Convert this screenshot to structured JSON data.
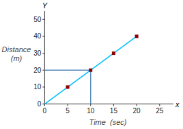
{
  "chart_data": {
    "type": "line",
    "xlabel": "Time  (sec)",
    "ylabel": [
      "Distance",
      "(m)"
    ],
    "x_axis_name": "x",
    "y_axis_name": "Y",
    "series": [
      {
        "type": "line",
        "color": "#00BFFF",
        "x": [
          0,
          20
        ],
        "values": [
          0,
          40
        ]
      },
      {
        "type": "line",
        "color": "#5588BB",
        "x": [
          0,
          10,
          10
        ],
        "values": [
          20,
          20,
          0
        ]
      },
      {
        "type": "scatter",
        "marker": "square",
        "color": "#8B0000",
        "x": [
          5,
          10,
          15,
          20
        ],
        "values": [
          10,
          20,
          30,
          40
        ]
      }
    ],
    "xlim": [
      -0.5,
      28
    ],
    "ylim": [
      -1,
      55
    ],
    "xticks": [
      0,
      5,
      10,
      15,
      20,
      25
    ],
    "yticks": [
      0,
      10,
      20,
      30,
      40,
      50
    ],
    "grid": false
  }
}
